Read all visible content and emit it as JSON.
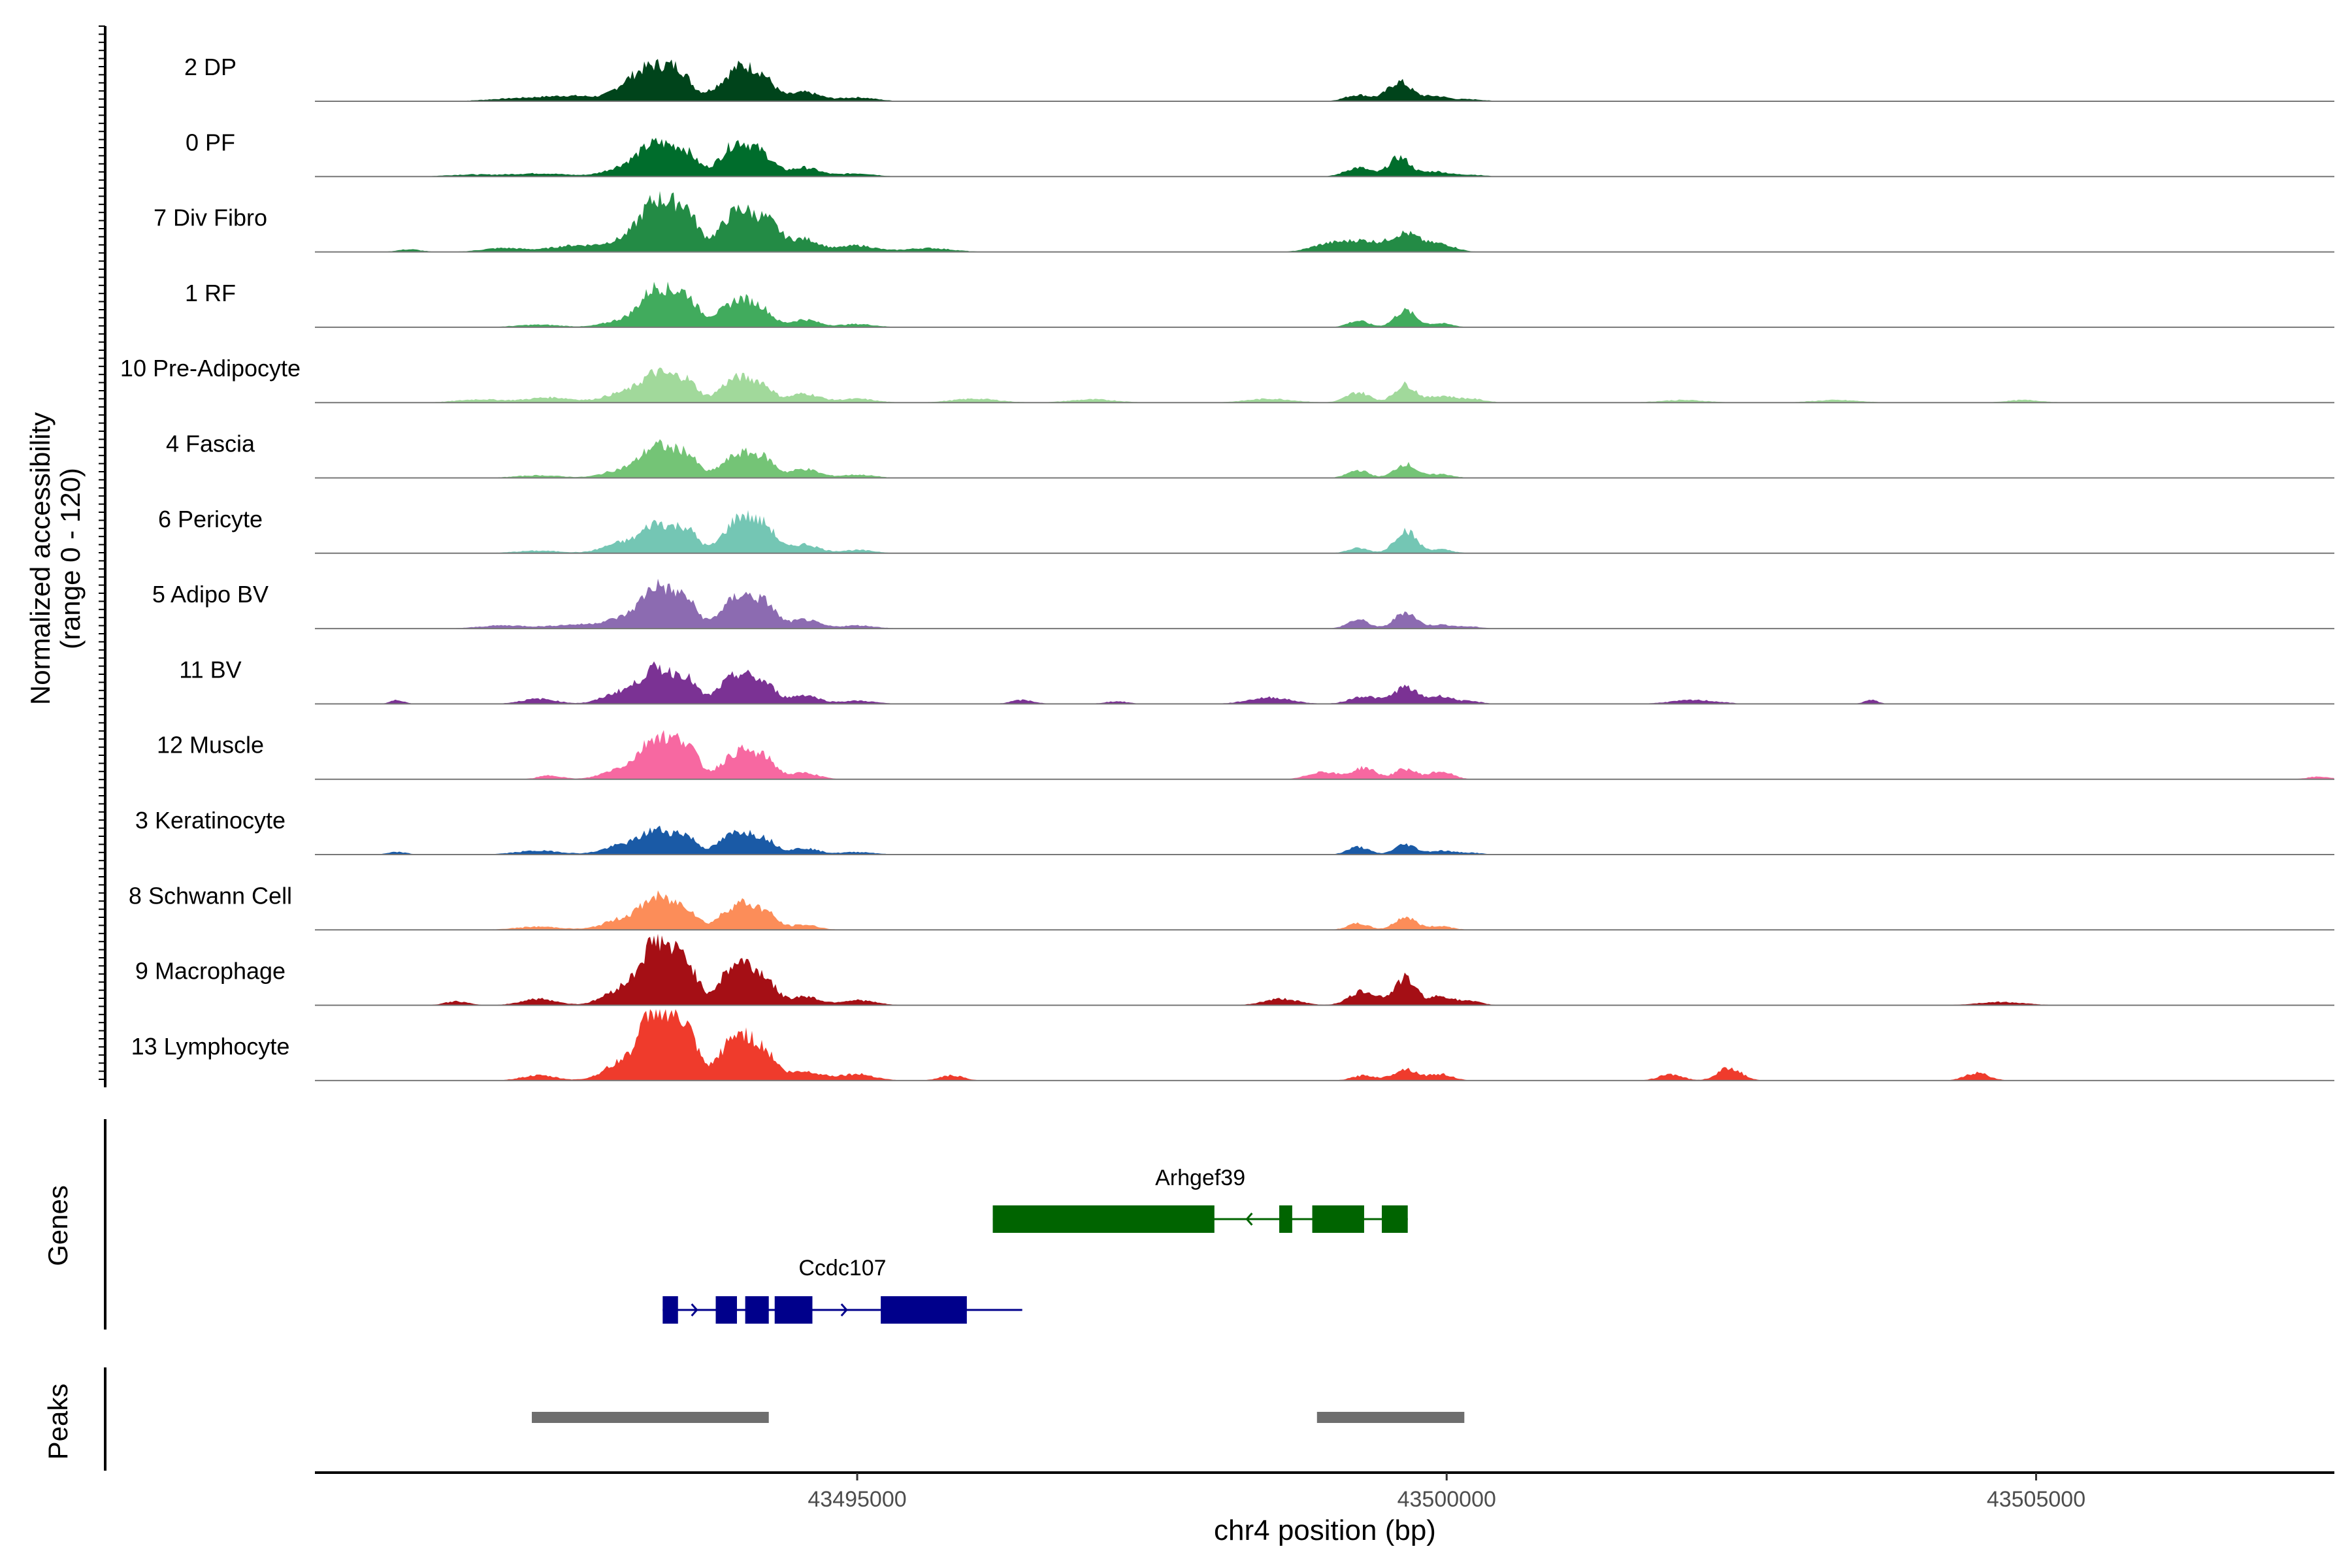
{
  "chart_data": {
    "type": "area",
    "title": "",
    "ylabel": "Normalized accessibility",
    "ylabel_range": "(range 0 - 120)",
    "ylim": [
      0,
      120
    ],
    "xlabel": "chr4 position (bp)",
    "xlim": [
      43490400,
      43507530
    ],
    "xticks": [
      43495000,
      43500000,
      43505000
    ],
    "xtick_labels": [
      "43495000",
      "43500000",
      "43505000"
    ],
    "grid": false,
    "legend": "none",
    "tracks": [
      {
        "label": "2 DP",
        "color": "#00441b",
        "peaks": [
          [
            43492100,
            4,
            250
          ],
          [
            43492600,
            8,
            250
          ],
          [
            43493050,
            20,
            120
          ],
          [
            43493280,
            50,
            140
          ],
          [
            43493500,
            36,
            100
          ],
          [
            43493800,
            14,
            100
          ],
          [
            43494000,
            48,
            110
          ],
          [
            43494200,
            34,
            100
          ],
          [
            43494550,
            14,
            130
          ],
          [
            43495000,
            6,
            160
          ],
          [
            43499250,
            10,
            110
          ],
          [
            43499600,
            30,
            100
          ],
          [
            43499900,
            8,
            110
          ],
          [
            43500200,
            3,
            120
          ]
        ]
      },
      {
        "label": "0 PF",
        "color": "#006d2c",
        "peaks": [
          [
            43491700,
            3,
            200
          ],
          [
            43492300,
            5,
            250
          ],
          [
            43493000,
            12,
            150
          ],
          [
            43493300,
            50,
            150
          ],
          [
            43493550,
            30,
            100
          ],
          [
            43493850,
            14,
            100
          ],
          [
            43494000,
            46,
            110
          ],
          [
            43494200,
            30,
            100
          ],
          [
            43494550,
            14,
            130
          ],
          [
            43495000,
            5,
            150
          ],
          [
            43499250,
            14,
            110
          ],
          [
            43499600,
            30,
            90
          ],
          [
            43499900,
            8,
            110
          ],
          [
            43500200,
            3,
            120
          ]
        ]
      },
      {
        "label": "7 Div Fibro",
        "color": "#238b45",
        "peaks": [
          [
            43491200,
            4,
            100
          ],
          [
            43492000,
            6,
            180
          ],
          [
            43492600,
            10,
            200
          ],
          [
            43493000,
            14,
            150
          ],
          [
            43493300,
            78,
            140
          ],
          [
            43493550,
            56,
            100
          ],
          [
            43493850,
            18,
            100
          ],
          [
            43494020,
            60,
            120
          ],
          [
            43494250,
            40,
            100
          ],
          [
            43494550,
            20,
            130
          ],
          [
            43495000,
            10,
            150
          ],
          [
            43495600,
            6,
            200
          ],
          [
            43499000,
            12,
            150
          ],
          [
            43499300,
            16,
            150
          ],
          [
            43499650,
            28,
            120
          ],
          [
            43499950,
            12,
            120
          ]
        ]
      },
      {
        "label": "1 RF",
        "color": "#41ab5d",
        "peaks": [
          [
            43492300,
            4,
            200
          ],
          [
            43493000,
            10,
            150
          ],
          [
            43493300,
            60,
            130
          ],
          [
            43493550,
            44,
            100
          ],
          [
            43493800,
            12,
            80
          ],
          [
            43494000,
            42,
            110
          ],
          [
            43494200,
            24,
            90
          ],
          [
            43494550,
            12,
            120
          ],
          [
            43495000,
            5,
            150
          ],
          [
            43499250,
            10,
            90
          ],
          [
            43499650,
            26,
            90
          ],
          [
            43499950,
            6,
            100
          ]
        ]
      },
      {
        "label": "10 Pre-Adipocyte",
        "color": "#a1d99b",
        "peaks": [
          [
            43491800,
            5,
            200
          ],
          [
            43492400,
            8,
            200
          ],
          [
            43493000,
            14,
            150
          ],
          [
            43493300,
            44,
            130
          ],
          [
            43493550,
            32,
            100
          ],
          [
            43493850,
            10,
            80
          ],
          [
            43494000,
            36,
            110
          ],
          [
            43494200,
            24,
            90
          ],
          [
            43494550,
            14,
            130
          ],
          [
            43495000,
            6,
            150
          ],
          [
            43496000,
            6,
            200
          ],
          [
            43497000,
            5,
            200
          ],
          [
            43498500,
            6,
            200
          ],
          [
            43499250,
            16,
            100
          ],
          [
            43499650,
            28,
            90
          ],
          [
            43499950,
            10,
            100
          ],
          [
            43500200,
            6,
            120
          ],
          [
            43502000,
            4,
            200
          ],
          [
            43503300,
            4,
            200
          ],
          [
            43504900,
            4,
            150
          ]
        ]
      },
      {
        "label": "4 Fascia",
        "color": "#74c476",
        "peaks": [
          [
            43492300,
            4,
            200
          ],
          [
            43493000,
            12,
            150
          ],
          [
            43493300,
            48,
            130
          ],
          [
            43493550,
            34,
            100
          ],
          [
            43493850,
            10,
            80
          ],
          [
            43494020,
            36,
            110
          ],
          [
            43494220,
            26,
            90
          ],
          [
            43494550,
            14,
            120
          ],
          [
            43495000,
            5,
            150
          ],
          [
            43499250,
            12,
            90
          ],
          [
            43499650,
            22,
            90
          ],
          [
            43499950,
            6,
            100
          ]
        ]
      },
      {
        "label": "6 Pericyte",
        "color": "#74c6b4",
        "peaks": [
          [
            43492300,
            4,
            200
          ],
          [
            43493000,
            16,
            150
          ],
          [
            43493300,
            44,
            120
          ],
          [
            43493550,
            36,
            100
          ],
          [
            43493850,
            10,
            80
          ],
          [
            43494020,
            56,
            110
          ],
          [
            43494230,
            36,
            90
          ],
          [
            43494550,
            14,
            120
          ],
          [
            43495000,
            5,
            150
          ],
          [
            43499250,
            8,
            90
          ],
          [
            43499650,
            36,
            90
          ],
          [
            43499950,
            6,
            100
          ]
        ]
      },
      {
        "label": "5 Adipo BV",
        "color": "#8c6bb1",
        "peaks": [
          [
            43492000,
            5,
            200
          ],
          [
            43492600,
            6,
            200
          ],
          [
            43493000,
            14,
            150
          ],
          [
            43493300,
            64,
            130
          ],
          [
            43493550,
            40,
            100
          ],
          [
            43493850,
            14,
            80
          ],
          [
            43494020,
            50,
            110
          ],
          [
            43494230,
            34,
            90
          ],
          [
            43494550,
            14,
            120
          ],
          [
            43495000,
            5,
            150
          ],
          [
            43499250,
            14,
            90
          ],
          [
            43499650,
            26,
            90
          ],
          [
            43499950,
            6,
            100
          ],
          [
            43500200,
            3,
            100
          ]
        ]
      },
      {
        "label": "11 BV",
        "color": "#7b3294",
        "peaks": [
          [
            43491100,
            6,
            60
          ],
          [
            43492300,
            8,
            150
          ],
          [
            43493000,
            18,
            150
          ],
          [
            43493300,
            52,
            130
          ],
          [
            43493550,
            36,
            100
          ],
          [
            43493850,
            16,
            80
          ],
          [
            43494020,
            44,
            110
          ],
          [
            43494230,
            26,
            90
          ],
          [
            43494550,
            14,
            120
          ],
          [
            43495000,
            5,
            150
          ],
          [
            43496400,
            6,
            100
          ],
          [
            43497200,
            4,
            100
          ],
          [
            43498500,
            10,
            180
          ],
          [
            43499300,
            12,
            120
          ],
          [
            43499650,
            26,
            100
          ],
          [
            43499950,
            12,
            100
          ],
          [
            43500200,
            4,
            100
          ],
          [
            43502100,
            6,
            200
          ],
          [
            43503600,
            6,
            60
          ]
        ]
      },
      {
        "label": "12 Muscle",
        "color": "#f768a1",
        "peaks": [
          [
            43492400,
            6,
            100
          ],
          [
            43493000,
            16,
            150
          ],
          [
            43493300,
            64,
            130
          ],
          [
            43493550,
            50,
            100
          ],
          [
            43493850,
            12,
            80
          ],
          [
            43494020,
            42,
            110
          ],
          [
            43494230,
            28,
            90
          ],
          [
            43494550,
            10,
            120
          ],
          [
            43498950,
            12,
            120
          ],
          [
            43499300,
            18,
            100
          ],
          [
            43499650,
            16,
            90
          ],
          [
            43499950,
            12,
            100
          ],
          [
            43507400,
            4,
            100
          ]
        ]
      },
      {
        "label": "3 Keratinocyte",
        "color": "#1a5aa6",
        "peaks": [
          [
            43491100,
            4,
            80
          ],
          [
            43492300,
            6,
            200
          ],
          [
            43493000,
            14,
            150
          ],
          [
            43493300,
            36,
            130
          ],
          [
            43493550,
            26,
            100
          ],
          [
            43493850,
            12,
            80
          ],
          [
            43494020,
            34,
            110
          ],
          [
            43494230,
            20,
            90
          ],
          [
            43494550,
            10,
            120
          ],
          [
            43495000,
            4,
            150
          ],
          [
            43499250,
            12,
            90
          ],
          [
            43499650,
            16,
            90
          ],
          [
            43499950,
            6,
            100
          ],
          [
            43500200,
            3,
            100
          ]
        ]
      },
      {
        "label": "8 Schwann Cell",
        "color": "#fc8d59",
        "peaks": [
          [
            43492300,
            5,
            200
          ],
          [
            43493000,
            16,
            150
          ],
          [
            43493300,
            48,
            130
          ],
          [
            43493550,
            30,
            100
          ],
          [
            43493850,
            12,
            80
          ],
          [
            43494020,
            40,
            110
          ],
          [
            43494230,
            24,
            90
          ],
          [
            43494550,
            8,
            120
          ],
          [
            43499250,
            10,
            90
          ],
          [
            43499650,
            20,
            90
          ],
          [
            43499950,
            6,
            100
          ]
        ]
      },
      {
        "label": "9 Macrophage",
        "color": "#a50f15",
        "peaks": [
          [
            43491600,
            6,
            100
          ],
          [
            43492300,
            10,
            150
          ],
          [
            43493000,
            24,
            150
          ],
          [
            43493300,
            96,
            130
          ],
          [
            43493550,
            60,
            100
          ],
          [
            43493850,
            22,
            80
          ],
          [
            43494020,
            64,
            110
          ],
          [
            43494230,
            34,
            90
          ],
          [
            43494550,
            14,
            120
          ],
          [
            43495000,
            8,
            150
          ],
          [
            43498600,
            10,
            150
          ],
          [
            43499300,
            22,
            120
          ],
          [
            43499650,
            42,
            90
          ],
          [
            43499950,
            14,
            100
          ],
          [
            43500200,
            6,
            100
          ],
          [
            43504700,
            5,
            200
          ]
        ]
      },
      {
        "label": "13 Lymphocyte",
        "color": "#ef3b2c",
        "peaks": [
          [
            43492300,
            8,
            150
          ],
          [
            43493000,
            26,
            150
          ],
          [
            43493300,
            110,
            130
          ],
          [
            43493550,
            70,
            100
          ],
          [
            43493850,
            24,
            80
          ],
          [
            43494020,
            70,
            110
          ],
          [
            43494230,
            36,
            90
          ],
          [
            43494550,
            14,
            150
          ],
          [
            43495000,
            10,
            150
          ],
          [
            43495800,
            8,
            100
          ],
          [
            43499300,
            8,
            100
          ],
          [
            43499650,
            18,
            100
          ],
          [
            43499950,
            10,
            100
          ],
          [
            43501900,
            10,
            100
          ],
          [
            43502400,
            20,
            100
          ],
          [
            43504500,
            12,
            100
          ]
        ]
      }
    ],
    "genes": [
      {
        "name": "Arhgef39",
        "color": "#006400",
        "start": 43496150,
        "end": 43499670,
        "strand": "-",
        "exons": [
          [
            43496150,
            43498030
          ],
          [
            43498580,
            43498690
          ],
          [
            43498860,
            43499300
          ],
          [
            43499450,
            43499670
          ]
        ]
      },
      {
        "name": "Ccdc107",
        "color": "#00008b",
        "start": 43493350,
        "end": 43496400,
        "strand": "+",
        "exons": [
          [
            43493350,
            43493480
          ],
          [
            43493800,
            43493980
          ],
          [
            43494050,
            43494250
          ],
          [
            43494300,
            43494620
          ],
          [
            43495200,
            43495930
          ]
        ]
      }
    ],
    "peak_regions": [
      [
        43492240,
        43494250
      ],
      [
        43498900,
        43500150
      ]
    ],
    "panel_labels": {
      "genes": "Genes",
      "peaks": "Peaks"
    }
  }
}
